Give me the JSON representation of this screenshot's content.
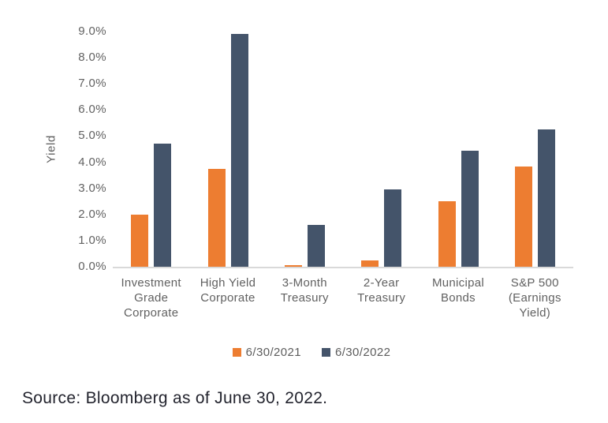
{
  "chart_data": {
    "type": "bar",
    "title": "",
    "xlabel": "",
    "ylabel": "Yield",
    "ylim": [
      0,
      9
    ],
    "ytick_step": 1,
    "ytick_suffix": "%",
    "grid": false,
    "legend_position": "bottom",
    "categories": [
      "Investment Grade Corporate",
      "High Yield Corporate",
      "3-Month Treasury",
      "2-Year Treasury",
      "Municipal Bonds",
      "S&P 500 (Earnings Yield)"
    ],
    "series": [
      {
        "name": "6/30/2021",
        "color": "#ED7D31",
        "values": [
          2.0,
          3.75,
          0.05,
          0.25,
          2.5,
          3.85
        ]
      },
      {
        "name": "6/30/2022",
        "color": "#44546A",
        "values": [
          4.7,
          8.9,
          1.6,
          2.95,
          4.45,
          5.25
        ]
      }
    ]
  },
  "source_note": "Source: Bloomberg as of June 30, 2022.",
  "colors": {
    "series_2021": "#ED7D31",
    "series_2022": "#44546A",
    "axis_line": "#D9D9D9",
    "tick_text": "#616161",
    "source_text": "#23242e",
    "background": "#FFFFFF"
  }
}
